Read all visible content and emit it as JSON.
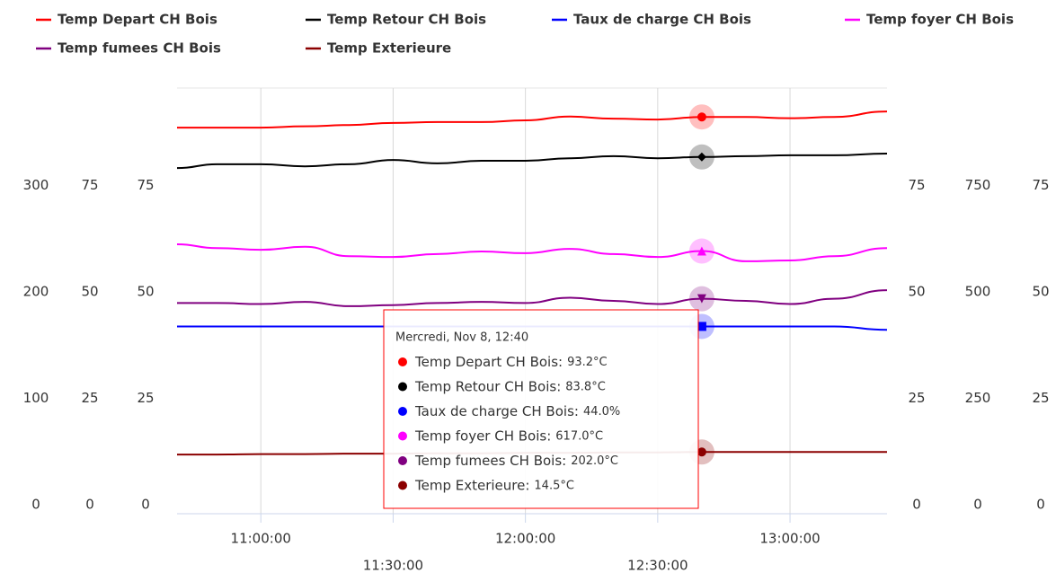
{
  "chart_data": {
    "type": "line",
    "x": [
      "10:41:00",
      "10:50:00",
      "11:00:00",
      "11:10:00",
      "11:20:00",
      "11:30:00",
      "11:40:00",
      "11:50:00",
      "12:00:00",
      "12:10:00",
      "12:20:00",
      "12:30:00",
      "12:40:00",
      "12:50:00",
      "13:00:00",
      "13:10:00",
      "13:22:00"
    ],
    "xlim": [
      "10:41:00",
      "13:22:00"
    ],
    "xticks": [
      "11:00:00",
      "11:30:00",
      "12:00:00",
      "12:30:00",
      "13:00:00"
    ],
    "grid": true,
    "legend": "top",
    "yaxes": [
      {
        "side": "left",
        "color": "#800080",
        "ylim": [
          0,
          400
        ],
        "yticks": [
          0,
          100,
          200,
          300
        ]
      },
      {
        "side": "left",
        "color": "#0000ff",
        "ylim": [
          0,
          100
        ],
        "yticks": [
          0,
          25,
          50,
          75
        ]
      },
      {
        "side": "left",
        "color": "#ff0000",
        "ylim": [
          0,
          100
        ],
        "yticks": [
          0,
          25,
          50,
          75
        ]
      },
      {
        "side": "right",
        "color": "#000000",
        "ylim": [
          0,
          100
        ],
        "yticks": [
          0,
          25,
          50,
          75
        ]
      },
      {
        "side": "right",
        "color": "#ff00ff",
        "ylim": [
          0,
          1000
        ],
        "yticks": [
          0,
          250,
          500,
          750
        ]
      },
      {
        "side": "right",
        "color": "#8b0000",
        "ylim": [
          0,
          100
        ],
        "yticks": [
          0,
          25,
          50,
          75
        ]
      }
    ],
    "series": [
      {
        "name": "Temp Depart CH Bois",
        "color": "#ff0000",
        "axis": 2,
        "marker": "circle",
        "values": [
          90.7,
          90.7,
          90.7,
          91.0,
          91.3,
          91.8,
          92.0,
          92.0,
          92.4,
          93.3,
          92.8,
          92.6,
          93.2,
          93.2,
          92.9,
          93.2,
          94.5
        ]
      },
      {
        "name": "Temp Retour CH Bois",
        "color": "#000000",
        "axis": 3,
        "marker": "diamond",
        "values": [
          81.2,
          82.1,
          82.1,
          81.6,
          82.1,
          83.1,
          82.3,
          82.9,
          82.9,
          83.5,
          84.0,
          83.5,
          83.8,
          84.0,
          84.2,
          84.2,
          84.6
        ]
      },
      {
        "name": "Taux de charge CH Bois",
        "color": "#0000ff",
        "axis": 1,
        "marker": "square",
        "values": [
          44.0,
          44.0,
          44.0,
          44.0,
          44.0,
          44.0,
          44.0,
          44.0,
          44.0,
          44.0,
          44.0,
          44.0,
          44.0,
          44.0,
          44.0,
          44.0,
          43.2
        ]
      },
      {
        "name": "Temp foyer CH Bois",
        "color": "#ff00ff",
        "axis": 4,
        "marker": "triangle",
        "values": [
          633,
          624,
          620,
          627,
          605,
          603,
          610,
          616,
          612,
          622,
          610,
          603,
          617,
          593,
          595,
          605,
          624
        ]
      },
      {
        "name": "Temp fumees CH Bois",
        "color": "#800080",
        "axis": 0,
        "marker": "triangle-down",
        "values": [
          198,
          198,
          197,
          199,
          195,
          196,
          198,
          199,
          198,
          203,
          200,
          197,
          202,
          200,
          197,
          202,
          210
        ]
      },
      {
        "name": "Temp Exterieure",
        "color": "#8b0000",
        "axis": 5,
        "marker": "circle",
        "values": [
          13.9,
          13.9,
          14.0,
          14.0,
          14.1,
          14.1,
          14.2,
          14.2,
          14.3,
          14.3,
          14.4,
          14.4,
          14.5,
          14.5,
          14.5,
          14.5,
          14.5
        ]
      }
    ],
    "tooltip": {
      "title": "Mercredi, Nov 8, 12:40",
      "labels": [
        "Temp Depart CH Bois:",
        "Temp Retour CH Bois:",
        "Taux de charge CH Bois:",
        "Temp foyer CH Bois:",
        "Temp fumees CH Bois:",
        "Temp Exterieure:"
      ],
      "values": [
        "93.2°C",
        "83.8°C",
        "44.0%",
        "617.0°C",
        "202.0°C",
        "14.5°C"
      ]
    }
  }
}
